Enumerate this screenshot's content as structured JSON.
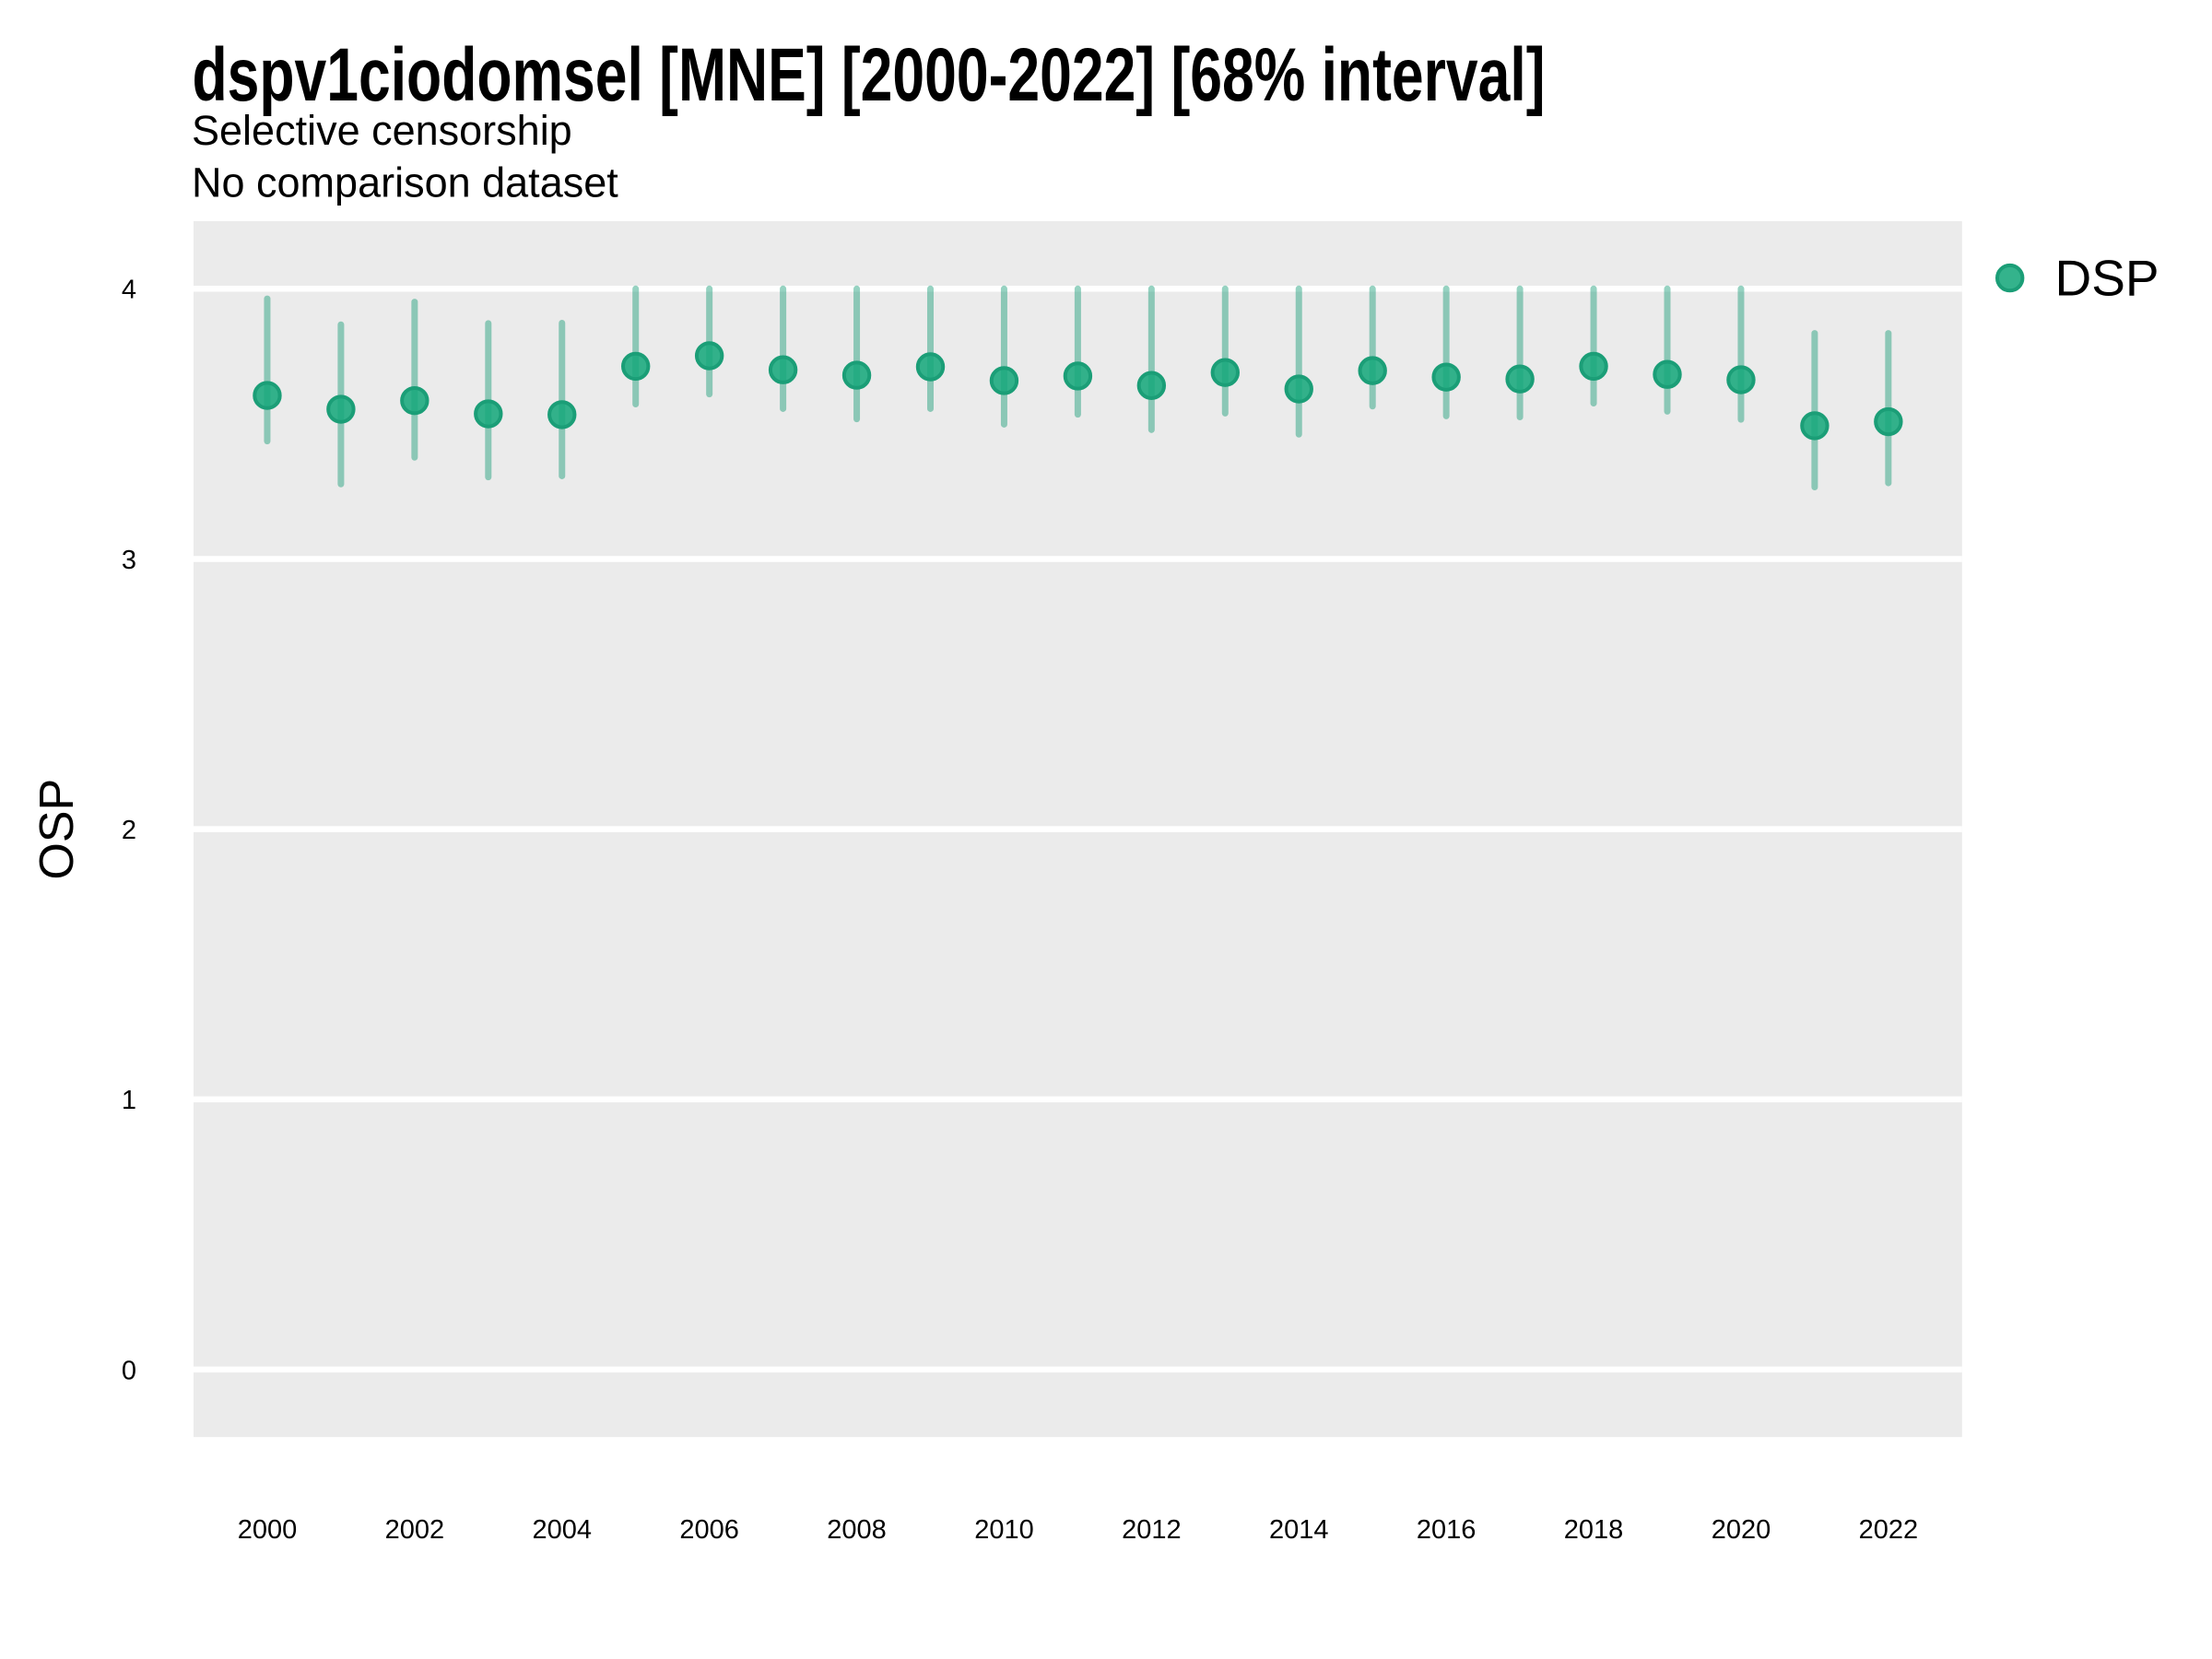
{
  "page": {
    "background_color": "#FFFFFF"
  },
  "chart_data": {
    "type": "pointrange",
    "title": "dspv1ciodomsel [MNE] [2000-2022] [68% interval]",
    "subtitle_lines": [
      "Selective censorship",
      "No comparison dataset"
    ],
    "xlabel": "",
    "ylabel": "OSP",
    "panel_bg": "#EBEBEB",
    "grid": {
      "horizontal": true,
      "vertical": false,
      "color": "#FFFFFF"
    },
    "x_range": [
      1999.0,
      2023.0
    ],
    "y_range": [
      -0.25,
      4.25
    ],
    "x_ticks": [
      2000,
      2002,
      2004,
      2006,
      2008,
      2010,
      2012,
      2014,
      2016,
      2018,
      2020,
      2022
    ],
    "y_ticks": [
      0,
      1,
      2,
      3,
      4
    ],
    "legend": {
      "position": "right",
      "entries": [
        {
          "label": "DSP",
          "marker": "circle"
        }
      ]
    },
    "series": [
      {
        "name": "DSP",
        "color": "#1B9E77",
        "bar_color": "rgba(27,158,119,0.46)",
        "dot_fill": "rgba(24,168,124,0.88)",
        "dot_stroke": "#1B9E77",
        "interval": "68%",
        "x": [
          2000,
          2001,
          2002,
          2003,
          2004,
          2005,
          2006,
          2007,
          2008,
          2009,
          2010,
          2011,
          2012,
          2013,
          2014,
          2015,
          2016,
          2017,
          2018,
          2019,
          2020,
          2021,
          2022
        ],
        "mean": [
          3.605,
          3.554,
          3.586,
          3.537,
          3.534,
          3.713,
          3.752,
          3.7,
          3.68,
          3.711,
          3.66,
          3.677,
          3.642,
          3.69,
          3.629,
          3.697,
          3.673,
          3.666,
          3.713,
          3.683,
          3.663,
          3.493,
          3.508
        ],
        "lower": [
          3.436,
          3.277,
          3.376,
          3.303,
          3.307,
          3.573,
          3.61,
          3.556,
          3.518,
          3.556,
          3.498,
          3.535,
          3.478,
          3.539,
          3.461,
          3.565,
          3.529,
          3.525,
          3.576,
          3.546,
          3.516,
          3.266,
          3.281
        ],
        "upper": [
          3.963,
          3.867,
          3.951,
          3.872,
          3.873,
          4.0,
          4.0,
          4.0,
          4.0,
          4.0,
          4.0,
          4.0,
          4.0,
          4.0,
          4.0,
          4.0,
          4.0,
          4.0,
          4.0,
          4.0,
          4.0,
          3.835,
          3.835
        ]
      }
    ]
  }
}
